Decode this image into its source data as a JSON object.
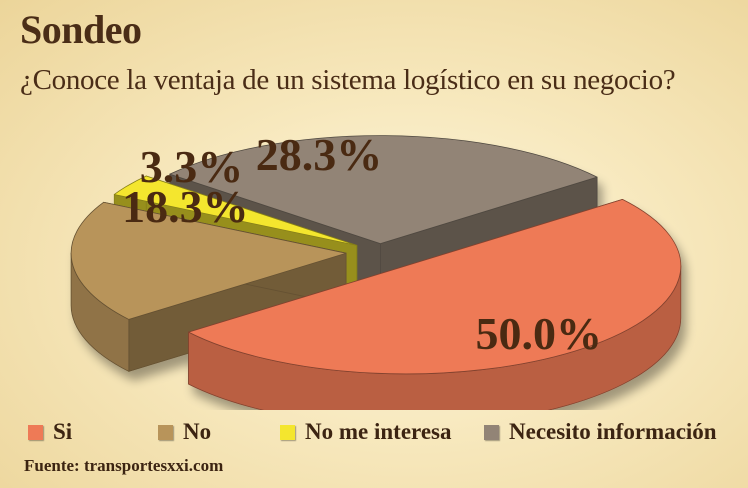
{
  "title": "Sondeo",
  "question": "¿Conoce la ventaja de un sistema logístico en su negocio?",
  "source": "Fuente: transportesxxi.com",
  "chart_data": {
    "type": "pie",
    "title": "Sondeo",
    "subtitle": "¿Conoce la ventaja de un sistema logístico en su negocio?",
    "categories": [
      "Si",
      "No",
      "No me interesa",
      "Necesito información"
    ],
    "values": [
      50.0,
      18.3,
      3.3,
      28.3
    ],
    "labels": [
      "50.0%",
      "18.3%",
      "3.3%",
      "28.3%"
    ],
    "colors": [
      "#ee7a56",
      "#b8945a",
      "#f4e62e",
      "#928476"
    ],
    "legend": "bottom"
  }
}
